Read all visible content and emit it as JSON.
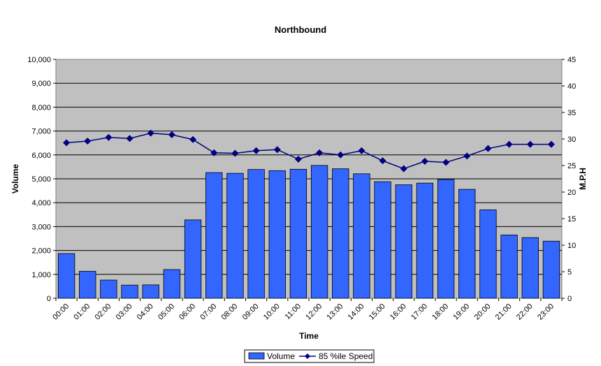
{
  "chart_data": {
    "type": "bar",
    "title": "Northbound",
    "xlabel": "Time",
    "ylabel": "Volume",
    "y2label": "M.P.H",
    "ylim": [
      0,
      10000
    ],
    "y2lim": [
      0,
      45
    ],
    "yticks": [
      "0",
      "1,000",
      "2,000",
      "3,000",
      "4,000",
      "5,000",
      "6,000",
      "7,000",
      "8,000",
      "9,000",
      "10,000"
    ],
    "y2ticks": [
      "0",
      "5",
      "10",
      "15",
      "20",
      "25",
      "30",
      "35",
      "40",
      "45"
    ],
    "categories": [
      "00:00",
      "01:00",
      "02:00",
      "03:00",
      "04:00",
      "05:00",
      "06:00",
      "07:00",
      "08:00",
      "09:00",
      "10:00",
      "11:00",
      "12:00",
      "13:00",
      "14:00",
      "15:00",
      "16:00",
      "17:00",
      "18:00",
      "19:00",
      "20:00",
      "21:00",
      "22:00",
      "23:00"
    ],
    "grid": true,
    "legend_position": "bottom",
    "series": [
      {
        "name": "Volume",
        "kind": "bar",
        "axis": "left",
        "color": "#3366ff",
        "values": [
          1870,
          1130,
          760,
          550,
          560,
          1200,
          3280,
          5260,
          5230,
          5390,
          5340,
          5400,
          5560,
          5420,
          5210,
          4880,
          4750,
          4820,
          4970,
          4560,
          3700,
          2650,
          2540,
          2390
        ]
      },
      {
        "name": "85 %ile Speed",
        "kind": "line",
        "axis": "right",
        "color": "#000080",
        "values": [
          29.3,
          29.6,
          30.3,
          30.1,
          31.1,
          30.8,
          29.9,
          27.4,
          27.3,
          27.8,
          28.0,
          26.2,
          27.4,
          27.0,
          27.8,
          25.9,
          24.4,
          25.8,
          25.6,
          26.8,
          28.2,
          29.0,
          29.0,
          29.0
        ]
      }
    ],
    "plot_background": "#c0c0c0"
  }
}
